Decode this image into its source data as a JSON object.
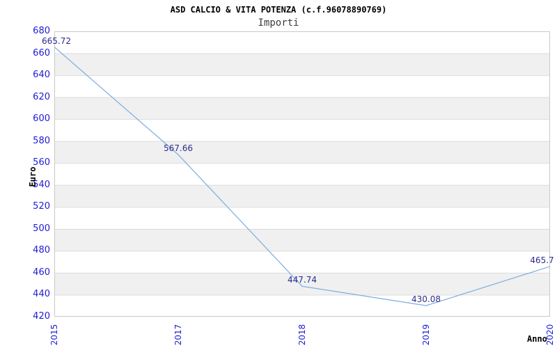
{
  "chart_data": {
    "type": "line",
    "title": "ASD CALCIO & VITA POTENZA (c.f.96078890769)",
    "subtitle": "Importi",
    "xlabel": "Anno",
    "ylabel": "Euro",
    "categories": [
      "2015",
      "2017",
      "2018",
      "2019",
      "2020"
    ],
    "series": [
      {
        "name": "Importi",
        "values": [
          665.72,
          567.66,
          447.74,
          430.08,
          465.7
        ],
        "value_labels": [
          "665.72",
          "567.66",
          "447.74",
          "430.08",
          "465.7"
        ]
      }
    ],
    "ylim": [
      420,
      680
    ],
    "ytick_step": 20,
    "grid": true,
    "legend_position": "none",
    "colors": {
      "line": "#7cace0",
      "tick_label": "#1c1cd6",
      "value_label": "#2b2b8f",
      "band": "#f0f0f0",
      "band_edge": "#dcdcdc",
      "plot_border": "#c9c9c9",
      "background": "#ffffff"
    }
  }
}
